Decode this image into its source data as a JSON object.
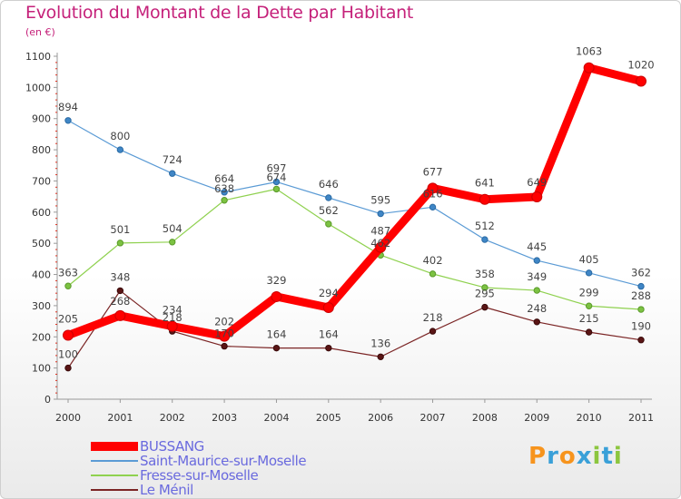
{
  "chart_data": {
    "type": "line",
    "title": "Evolution du Montant de la Dette par Habitant",
    "subtitle": "(en €)",
    "x": [
      "2000",
      "2001",
      "2002",
      "2003",
      "2004",
      "2005",
      "2006",
      "2007",
      "2008",
      "2009",
      "2010",
      "2011"
    ],
    "ylim": [
      0,
      1100
    ],
    "yticks": [
      "0",
      "100",
      "200",
      "300",
      "400",
      "500",
      "600",
      "700",
      "800",
      "900",
      "1000",
      "1100"
    ],
    "grid": false,
    "legend_position": "bottom-left",
    "series": [
      {
        "name": "BUSSANG",
        "color": "#ff0000",
        "values": [
          205,
          268,
          234,
          202,
          329,
          294,
          487,
          677,
          641,
          649,
          1063,
          1020
        ]
      },
      {
        "name": "Saint-Maurice-sur-Moselle",
        "color": "#5b9bd5",
        "values": [
          894,
          800,
          724,
          664,
          697,
          646,
          595,
          616,
          512,
          445,
          405,
          362
        ]
      },
      {
        "name": "Fresse-sur-Moselle",
        "color": "#8fd14f",
        "values": [
          363,
          501,
          504,
          638,
          674,
          562,
          462,
          402,
          358,
          349,
          299,
          288
        ]
      },
      {
        "name": "Le Ménil",
        "color": "#7b2525",
        "values": [
          100,
          348,
          218,
          170,
          164,
          164,
          136,
          218,
          295,
          248,
          215,
          190
        ]
      }
    ]
  },
  "labels": {
    "BUSSANG": [
      "205",
      "268",
      "234",
      "202",
      "329",
      "294",
      "487",
      "677",
      "641",
      "649",
      "1063",
      "1020"
    ],
    "Saint-Maurice-sur-Moselle": [
      "894",
      "800",
      "724",
      "664",
      "697",
      "646",
      "595",
      "616",
      "512",
      "445",
      "405",
      "362"
    ],
    "Fresse-sur-Moselle": [
      "363",
      "501",
      "504",
      "638",
      "674",
      "562",
      "462",
      "402",
      "358",
      "349",
      "299",
      "288"
    ],
    "Le Ménil": [
      "100",
      "348",
      "218",
      "170",
      "164",
      "164",
      "136",
      "218",
      "295",
      "248",
      "215",
      "190"
    ]
  },
  "logo": {
    "text": "Proxiti",
    "colors": [
      "#f7941d",
      "#3aa0d8",
      "#f7941d",
      "#3aa0d8",
      "#8cc63f",
      "#3aa0d8",
      "#8cc63f"
    ]
  }
}
